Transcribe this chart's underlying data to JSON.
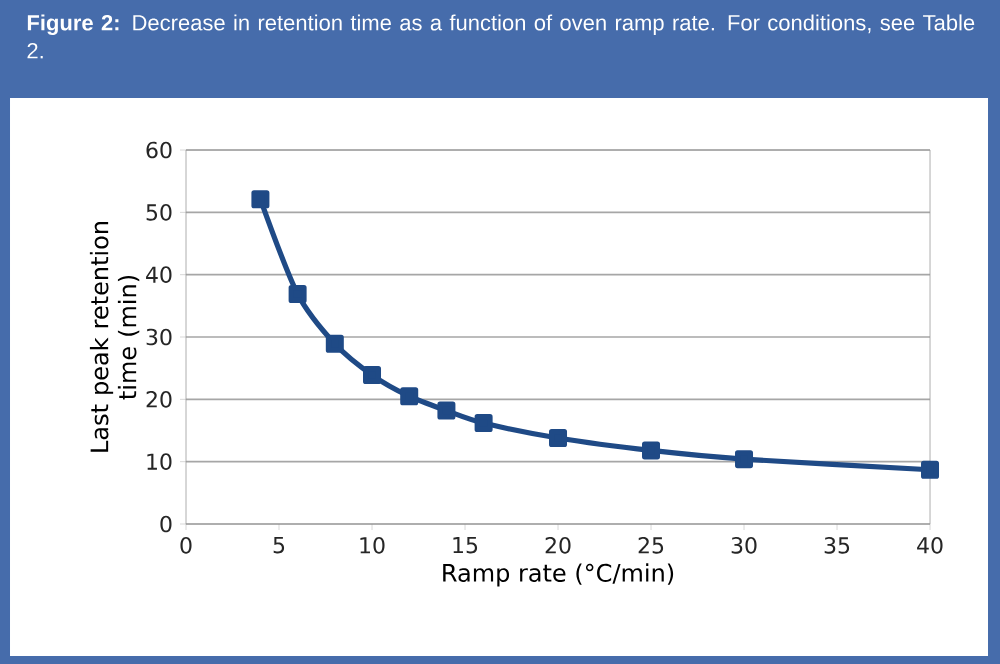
{
  "chart_data": {
    "type": "line",
    "title": "**Figure 2:** Decrease in retention time as a function of oven ramp rate. For conditions, see Table 2.",
    "xlabel": "Ramp rate (°C/min)",
    "ylabel": "Last peak retention time (min)",
    "x": [
      4,
      6,
      8,
      10,
      12,
      14,
      16,
      20,
      25,
      30,
      40
    ],
    "values": [
      52.1,
      36.9,
      28.9,
      23.9,
      20.5,
      18.2,
      16.2,
      13.8,
      11.8,
      10.4,
      8.7
    ],
    "color": "#1f4a86",
    "marker": "square",
    "line_style": "solid",
    "xlim": [
      0,
      40
    ],
    "ylim": [
      0,
      60
    ],
    "xticks": [
      0,
      5,
      10,
      15,
      20,
      25,
      30,
      35,
      40
    ],
    "yticks": [
      0,
      10,
      20,
      30,
      40,
      50,
      60
    ],
    "grid": "y"
  }
}
